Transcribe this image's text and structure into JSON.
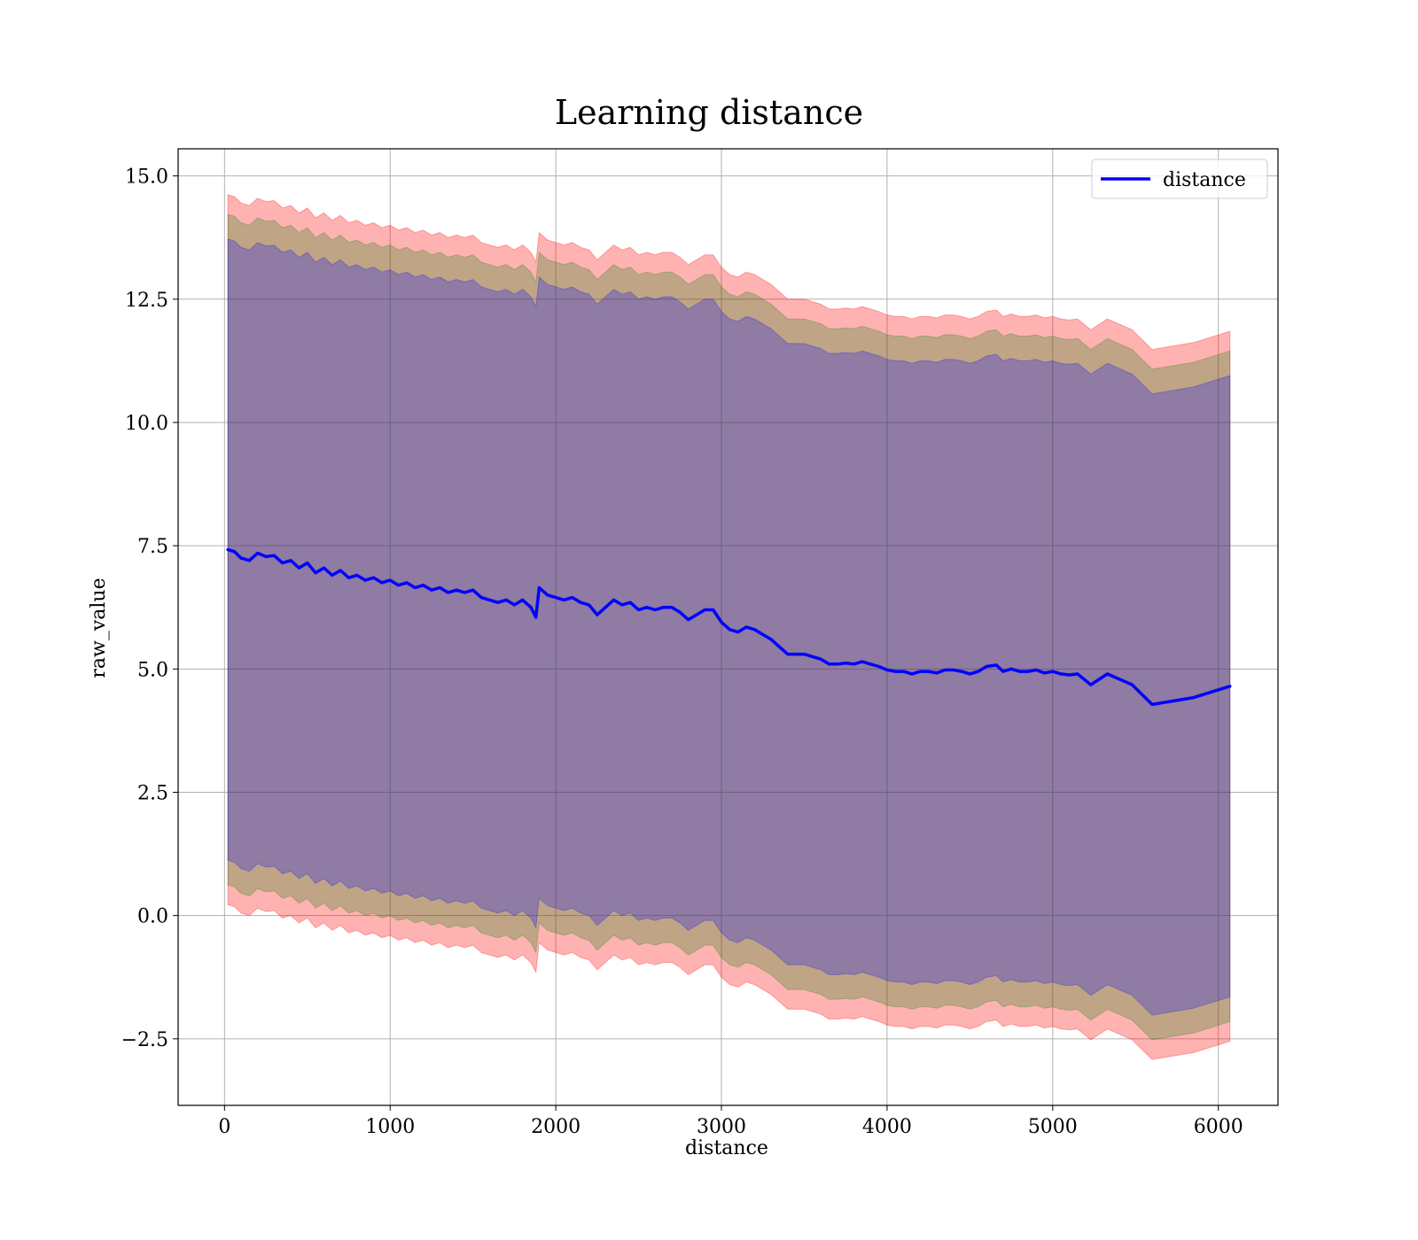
{
  "chart_data": {
    "type": "line",
    "title": "Learning distance",
    "xlabel": "distance",
    "ylabel": "raw_value",
    "xlim": [
      -280,
      6360
    ],
    "ylim": [
      -3.85,
      15.55
    ],
    "xticks": [
      0,
      1000,
      2000,
      3000,
      4000,
      5000,
      6000
    ],
    "yticks": [
      -2.5,
      0.0,
      2.5,
      5.0,
      7.5,
      10.0,
      12.5,
      15.0
    ],
    "xtick_labels": [
      "0",
      "1000",
      "2000",
      "3000",
      "4000",
      "5000",
      "6000"
    ],
    "ytick_labels": [
      "−2.5",
      "0.0",
      "2.5",
      "5.0",
      "7.5",
      "10.0",
      "12.5",
      "15.0"
    ],
    "grid": true,
    "legend": {
      "position": "top-right",
      "entries": [
        "distance"
      ]
    },
    "series": [
      {
        "name": "distance",
        "color": "#0000ff",
        "x": [
          20,
          60,
          100,
          150,
          200,
          250,
          300,
          350,
          400,
          450,
          500,
          550,
          600,
          650,
          700,
          750,
          800,
          850,
          900,
          950,
          1000,
          1050,
          1100,
          1150,
          1200,
          1250,
          1300,
          1350,
          1400,
          1450,
          1500,
          1550,
          1600,
          1650,
          1700,
          1750,
          1800,
          1850,
          1880,
          1900,
          1950,
          2000,
          2050,
          2100,
          2150,
          2200,
          2250,
          2300,
          2350,
          2400,
          2450,
          2500,
          2550,
          2600,
          2650,
          2700,
          2750,
          2800,
          2850,
          2900,
          2950,
          3000,
          3050,
          3100,
          3150,
          3200,
          3250,
          3300,
          3350,
          3400,
          3450,
          3500,
          3550,
          3600,
          3650,
          3700,
          3750,
          3800,
          3850,
          3900,
          3950,
          4000,
          4050,
          4100,
          4150,
          4200,
          4250,
          4300,
          4350,
          4400,
          4450,
          4500,
          4550,
          4600,
          4660,
          4700,
          4750,
          4800,
          4850,
          4900,
          4950,
          5000,
          5050,
          5100,
          5150,
          5230,
          5330,
          5480,
          5600,
          5850,
          6070
        ],
        "values": [
          7.42,
          7.38,
          7.25,
          7.2,
          7.35,
          7.28,
          7.3,
          7.15,
          7.2,
          7.05,
          7.15,
          6.95,
          7.05,
          6.9,
          7.0,
          6.85,
          6.9,
          6.8,
          6.85,
          6.75,
          6.8,
          6.7,
          6.75,
          6.65,
          6.7,
          6.6,
          6.65,
          6.55,
          6.6,
          6.55,
          6.6,
          6.45,
          6.4,
          6.35,
          6.4,
          6.3,
          6.4,
          6.25,
          6.05,
          6.65,
          6.5,
          6.45,
          6.4,
          6.45,
          6.35,
          6.3,
          6.1,
          6.25,
          6.4,
          6.3,
          6.35,
          6.2,
          6.25,
          6.2,
          6.25,
          6.25,
          6.15,
          6.0,
          6.1,
          6.2,
          6.2,
          5.95,
          5.8,
          5.75,
          5.85,
          5.8,
          5.7,
          5.6,
          5.45,
          5.3,
          5.3,
          5.3,
          5.25,
          5.2,
          5.1,
          5.1,
          5.12,
          5.1,
          5.15,
          5.1,
          5.05,
          4.98,
          4.95,
          4.95,
          4.9,
          4.95,
          4.95,
          4.92,
          4.98,
          4.98,
          4.95,
          4.9,
          4.95,
          5.05,
          5.08,
          4.95,
          5.0,
          4.95,
          4.95,
          4.98,
          4.92,
          4.95,
          4.9,
          4.88,
          4.9,
          4.68,
          4.9,
          4.68,
          4.28,
          4.42,
          4.65
        ]
      }
    ],
    "bands": [
      {
        "color": "#ff0000",
        "opacity": 0.3,
        "half_width": 7.2
      },
      {
        "color": "#008000",
        "opacity": 0.25,
        "half_width": 6.8
      },
      {
        "color": "#0000ff",
        "opacity": 0.25,
        "half_width": 6.3
      }
    ]
  }
}
